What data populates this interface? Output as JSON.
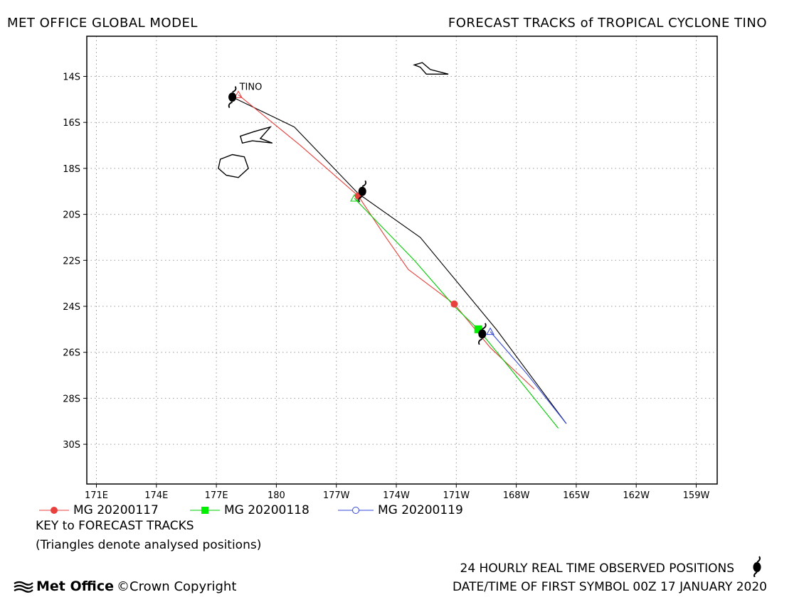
{
  "header": {
    "left_title": "MET OFFICE GLOBAL MODEL",
    "right_title": "FORECAST TRACKS of TROPICAL CYCLONE TINO"
  },
  "map": {
    "cyclone_label": "TINO",
    "x_ticks": [
      "171E",
      "174E",
      "177E",
      "180",
      "177W",
      "174W",
      "171W",
      "168W",
      "165W",
      "162W",
      "159W"
    ],
    "y_ticks": [
      "14S",
      "16S",
      "18S",
      "20S",
      "22S",
      "24S",
      "26S",
      "28S",
      "30S"
    ],
    "colors": {
      "observed": "#000000",
      "MG 20200117": "#e8403c",
      "MG 20200118": "#00cc00",
      "MG 20200119": "#3348d8"
    },
    "observed_track": [
      [
        177.8,
        -14.9
      ],
      [
        180.9,
        -16.2
      ],
      [
        184.1,
        -19.1
      ],
      [
        187.2,
        -21.0
      ],
      [
        191.0,
        -25.0
      ],
      [
        194.5,
        -29.1
      ]
    ],
    "observed_positions": [
      [
        177.8,
        -14.9
      ],
      [
        184.3,
        -19.0
      ],
      [
        190.3,
        -25.2
      ]
    ],
    "forecast_tracks": [
      {
        "name": "MG 20200117",
        "marker": "circle",
        "symbol_points": [
          [
            184.1,
            -19.2
          ],
          [
            188.9,
            -23.9
          ]
        ],
        "track": [
          [
            178.1,
            -14.8
          ],
          [
            181.2,
            -17.0
          ],
          [
            184.1,
            -19.2
          ],
          [
            185.4,
            -20.9
          ],
          [
            186.6,
            -22.4
          ],
          [
            188.9,
            -23.9
          ],
          [
            190.7,
            -25.8
          ],
          [
            192.9,
            -27.6
          ]
        ]
      },
      {
        "name": "MG 20200118",
        "marker": "square",
        "symbol_points": [
          [
            190.1,
            -25.0
          ]
        ],
        "track": [
          [
            183.9,
            -19.3
          ],
          [
            186.9,
            -22.0
          ],
          [
            188.9,
            -24.0
          ],
          [
            190.1,
            -25.0
          ],
          [
            191.6,
            -26.6
          ],
          [
            194.1,
            -29.3
          ]
        ]
      },
      {
        "name": "MG 20200119",
        "marker": "circle-open",
        "symbol_points": [],
        "track": [
          [
            190.7,
            -25.1
          ],
          [
            192.5,
            -26.9
          ],
          [
            194.5,
            -29.1
          ]
        ]
      }
    ],
    "analysed_positions": [
      {
        "series": "MG 20200117",
        "lonlat": [
          178.1,
          -14.8
        ]
      },
      {
        "series": "MG 20200118",
        "lonlat": [
          183.9,
          -19.3
        ]
      },
      {
        "series": "MG 20200119",
        "lonlat": [
          190.7,
          -25.1
        ]
      }
    ],
    "islands": [
      [
        [
          186.9,
          -13.5
        ],
        [
          187.3,
          -13.4
        ],
        [
          187.7,
          -13.7
        ],
        [
          188.6,
          -13.9
        ],
        [
          188.0,
          -13.9
        ],
        [
          187.5,
          -13.9
        ],
        [
          187.2,
          -13.6
        ]
      ],
      [
        [
          178.2,
          -16.6
        ],
        [
          178.9,
          -16.4
        ],
        [
          179.7,
          -16.2
        ],
        [
          179.2,
          -16.7
        ],
        [
          179.8,
          -16.9
        ],
        [
          178.8,
          -16.8
        ],
        [
          178.3,
          -16.9
        ]
      ],
      [
        [
          177.2,
          -17.6
        ],
        [
          177.8,
          -17.4
        ],
        [
          178.4,
          -17.5
        ],
        [
          178.6,
          -18.0
        ],
        [
          178.1,
          -18.4
        ],
        [
          177.5,
          -18.3
        ],
        [
          177.1,
          -18.0
        ]
      ]
    ]
  },
  "legend": {
    "items": [
      {
        "label": "MG 20200117",
        "marker": "circle",
        "color": "#e8403c"
      },
      {
        "label": "MG 20200118",
        "marker": "square",
        "color": "#00cc00"
      },
      {
        "label": "MG 20200119",
        "marker": "circle-open",
        "color": "#3348d8"
      }
    ],
    "key_title": "KEY to FORECAST TRACKS",
    "key_note": "(Triangles denote analysed positions)"
  },
  "footer": {
    "observed_text": "24 HOURLY REAL TIME OBSERVED POSITIONS",
    "date_text": "DATE/TIME OF FIRST SYMBOL 00Z 17 JANUARY 2020",
    "logo_text": "Met Office",
    "copyright_text": "©Crown Copyright"
  }
}
